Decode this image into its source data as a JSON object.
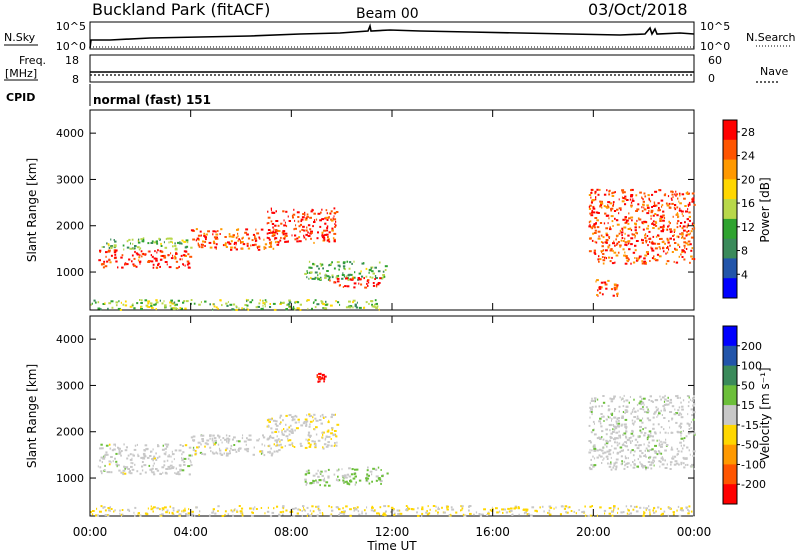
{
  "header": {
    "station": "Buckland Park (fitACF)",
    "beam": "Beam 00",
    "date": "03/Oct/2018"
  },
  "top_panels": {
    "nsky_label": "N.Sky",
    "nsky_ticks": [
      "10^5",
      "10^0"
    ],
    "nsearch_label": "N.Search",
    "nsearch_ticks": [
      "10^5",
      "10^0"
    ],
    "freq_label_1": "Freq.",
    "freq_label_2": "[MHz]",
    "freq_ticks": [
      "18",
      "8"
    ],
    "nave_label": "Nave",
    "nave_ticks": [
      "60",
      "0"
    ],
    "cpid_label": "CPID",
    "cpid_text": "normal (fast) 151"
  },
  "colors": {
    "power_scale": [
      "#0000ff",
      "#2255aa",
      "#3a8a5a",
      "#2fa32f",
      "#b8d84a",
      "#ffd700",
      "#ff9900",
      "#ff5500",
      "#ff0000"
    ],
    "velocity_scale": [
      "#0000ff",
      "#2255aa",
      "#3a8a5a",
      "#6cbf3a",
      "#c8c8c8",
      "#ffd700",
      "#ff9900",
      "#ff5500",
      "#ff0000"
    ]
  },
  "chart_data": [
    {
      "type": "heatmap",
      "title": "",
      "xlabel": "",
      "ylabel": "Slant Range [km]",
      "xlim": [
        "00:00",
        "00:00"
      ],
      "x_ticks": [
        "00:00",
        "04:00",
        "08:00",
        "12:00",
        "16:00",
        "20:00",
        "00:00"
      ],
      "ylim": [
        180,
        4500
      ],
      "y_ticks": [
        1000,
        2000,
        3000,
        4000
      ],
      "colorbar": {
        "label": "Power [dB]",
        "ticks": [
          4,
          8,
          12,
          16,
          20,
          24,
          28
        ],
        "range": [
          0,
          30
        ]
      },
      "echo_regions": [
        {
          "t0": 0.0,
          "t1": 11.6,
          "r0": 200,
          "r1": 420,
          "value": 14
        },
        {
          "t0": 0.3,
          "t1": 4.0,
          "r0": 1100,
          "r1": 1500,
          "value": 28
        },
        {
          "t0": 0.3,
          "t1": 4.0,
          "r0": 1500,
          "r1": 1750,
          "value": 12
        },
        {
          "t0": 4.0,
          "t1": 7.5,
          "r0": 1500,
          "r1": 1950,
          "value": 26
        },
        {
          "t0": 7.0,
          "t1": 9.8,
          "r0": 1650,
          "r1": 2400,
          "value": 27
        },
        {
          "t0": 8.5,
          "t1": 11.8,
          "r0": 850,
          "r1": 1250,
          "value": 12
        },
        {
          "t0": 9.5,
          "t1": 11.5,
          "r0": 680,
          "r1": 900,
          "value": 29
        },
        {
          "t0": 19.8,
          "t1": 24.0,
          "r0": 1200,
          "r1": 2800,
          "value": 26
        },
        {
          "t0": 20.0,
          "t1": 21.0,
          "r0": 500,
          "r1": 850,
          "value": 25
        }
      ]
    },
    {
      "type": "heatmap",
      "title": "",
      "xlabel": "Time UT",
      "ylabel": "Slant Range [km]",
      "xlim": [
        "00:00",
        "00:00"
      ],
      "x_ticks": [
        "00:00",
        "04:00",
        "08:00",
        "12:00",
        "16:00",
        "20:00",
        "00:00"
      ],
      "ylim": [
        180,
        4500
      ],
      "y_ticks": [
        1000,
        2000,
        3000,
        4000
      ],
      "colorbar": {
        "label": "Velocity [m s⁻¹]",
        "ticks": [
          200,
          100,
          50,
          15,
          -15,
          -50,
          -100,
          -200
        ],
        "range": [
          -250,
          250
        ]
      },
      "echo_regions": [
        {
          "t0": 0.0,
          "t1": 24.0,
          "r0": 200,
          "r1": 420,
          "value": -30
        },
        {
          "t0": 0.3,
          "t1": 4.0,
          "r0": 1100,
          "r1": 1750,
          "value": 0
        },
        {
          "t0": 4.0,
          "t1": 7.5,
          "r0": 1500,
          "r1": 1950,
          "value": 0
        },
        {
          "t0": 7.0,
          "t1": 9.8,
          "r0": 1650,
          "r1": 2400,
          "value": -20
        },
        {
          "t0": 8.5,
          "t1": 11.8,
          "r0": 850,
          "r1": 1250,
          "value": 40
        },
        {
          "t0": 19.8,
          "t1": 24.0,
          "r0": 1200,
          "r1": 2800,
          "value": 5
        },
        {
          "t0": 9.0,
          "t1": 9.3,
          "r0": 3100,
          "r1": 3300,
          "value": -220
        }
      ]
    }
  ]
}
